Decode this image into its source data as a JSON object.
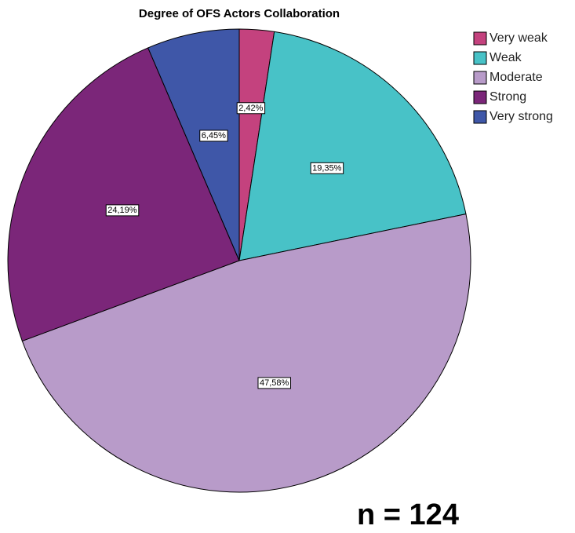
{
  "chart_data": {
    "type": "pie",
    "title": "Degree of OFS Actors Collaboration",
    "categories": [
      "Very weak",
      "Weak",
      "Moderate",
      "Strong",
      "Very strong"
    ],
    "values": [
      2.42,
      19.35,
      47.58,
      24.19,
      6.45
    ],
    "value_labels": [
      "2,42%",
      "19,35%",
      "47,58%",
      "24,19%",
      "6,45%"
    ],
    "colors": [
      "#c4427e",
      "#48c2c7",
      "#b89bc9",
      "#7b2679",
      "#3f57a8"
    ],
    "legend": "upper right",
    "annotations": [
      "n = 124"
    ]
  }
}
